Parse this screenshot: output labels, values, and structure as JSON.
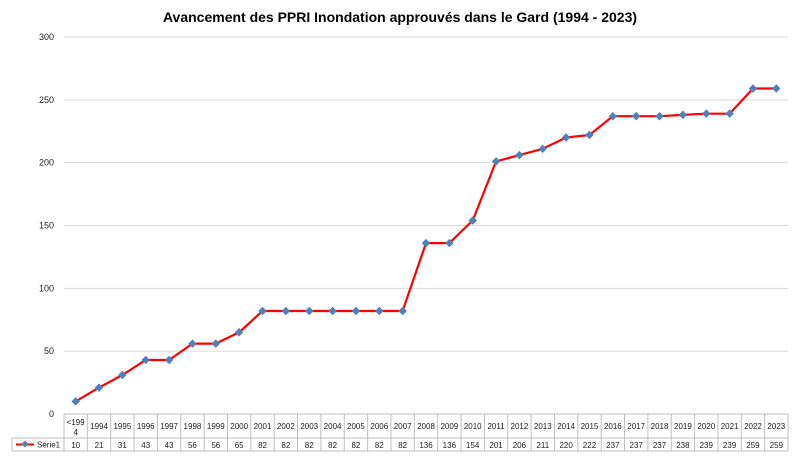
{
  "chart_data": {
    "type": "line",
    "title": "Avancement des PPRI Inondation approuvés dans le Gard (1994 - 2023)",
    "xlabel": "",
    "ylabel": "",
    "ylim": [
      0,
      300
    ],
    "yticks": [
      0,
      50,
      100,
      150,
      200,
      250,
      300
    ],
    "grid": true,
    "legend": "data-table-left",
    "data_table": true,
    "categories": [
      "<1994",
      "1994",
      "1995",
      "1996",
      "1997",
      "1998",
      "1999",
      "2000",
      "2001",
      "2002",
      "2003",
      "2004",
      "2005",
      "2006",
      "2007",
      "2008",
      "2009",
      "2010",
      "2011",
      "2012",
      "2013",
      "2014",
      "2015",
      "2016",
      "2017",
      "2018",
      "2019",
      "2020",
      "2021",
      "2022",
      "2023"
    ],
    "series": [
      {
        "name": "Série1",
        "color": "#ff0000",
        "marker_color": "#4f81bd",
        "values": [
          10,
          21,
          31,
          43,
          43,
          56,
          56,
          65,
          82,
          82,
          82,
          82,
          82,
          82,
          82,
          136,
          136,
          154,
          201,
          206,
          211,
          220,
          222,
          237,
          237,
          237,
          238,
          239,
          239,
          259,
          259
        ]
      }
    ]
  }
}
